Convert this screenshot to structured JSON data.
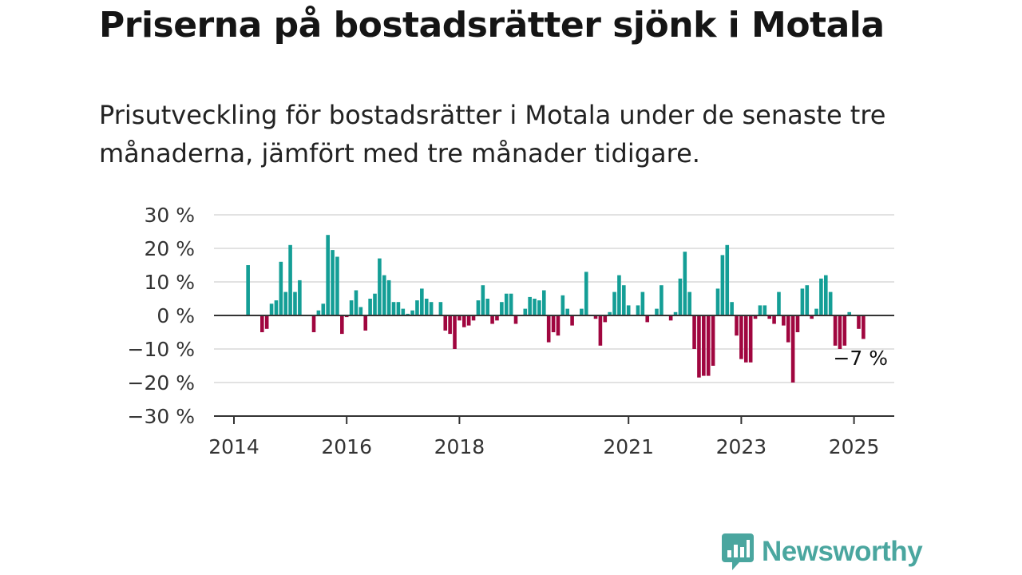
{
  "title": "Priserna på bostadsrätter sjönk i Motala",
  "subtitle": "Prisutveckling för bostadsrätter i Motala under de senaste tre månaderna, jämfört med tre månader tidigare.",
  "logo": {
    "text": "Newsworthy",
    "icon": "newsworthy-chart-bubble-icon",
    "color": "#4aa69f"
  },
  "colors": {
    "positive": "#149e96",
    "negative": "#a0063f",
    "grid": "#d9d9d9",
    "axis": "#333333"
  },
  "chart_data": {
    "type": "bar",
    "title": "",
    "xlabel": "",
    "ylabel": "",
    "ylim": [
      -30,
      30
    ],
    "yticks": [
      {
        "value": 30,
        "label": "30 %"
      },
      {
        "value": 20,
        "label": "20 %"
      },
      {
        "value": 10,
        "label": "10 %"
      },
      {
        "value": 0,
        "label": "0 %"
      },
      {
        "value": -10,
        "label": "−10 %"
      },
      {
        "value": -20,
        "label": "−20 %"
      },
      {
        "value": -30,
        "label": "−30 %"
      }
    ],
    "xticks": [
      {
        "date": "2014-01",
        "label": "2014"
      },
      {
        "date": "2016-01",
        "label": "2016"
      },
      {
        "date": "2018-01",
        "label": "2018"
      },
      {
        "date": "2021-01",
        "label": "2021"
      },
      {
        "date": "2023-01",
        "label": "2023"
      },
      {
        "date": "2025-01",
        "label": "2025"
      }
    ],
    "grid": true,
    "legend": "none",
    "end_label": "−7 %",
    "x": [
      "2014-04",
      "2014-05",
      "2014-06",
      "2014-07",
      "2014-08",
      "2014-09",
      "2014-10",
      "2014-11",
      "2014-12",
      "2015-01",
      "2015-02",
      "2015-03",
      "2015-04",
      "2015-05",
      "2015-06",
      "2015-07",
      "2015-08",
      "2015-09",
      "2015-10",
      "2015-11",
      "2015-12",
      "2016-01",
      "2016-02",
      "2016-03",
      "2016-04",
      "2016-05",
      "2016-06",
      "2016-07",
      "2016-08",
      "2016-09",
      "2016-10",
      "2016-11",
      "2016-12",
      "2017-01",
      "2017-02",
      "2017-03",
      "2017-04",
      "2017-05",
      "2017-06",
      "2017-07",
      "2017-08",
      "2017-09",
      "2017-10",
      "2017-11",
      "2017-12",
      "2018-01",
      "2018-02",
      "2018-03",
      "2018-04",
      "2018-05",
      "2018-06",
      "2018-07",
      "2018-08",
      "2018-09",
      "2018-10",
      "2018-11",
      "2018-12",
      "2019-01",
      "2019-02",
      "2019-03",
      "2019-04",
      "2019-05",
      "2019-06",
      "2019-07",
      "2019-08",
      "2019-09",
      "2019-10",
      "2019-11",
      "2019-12",
      "2020-01",
      "2020-02",
      "2020-03",
      "2020-04",
      "2020-05",
      "2020-06",
      "2020-07",
      "2020-08",
      "2020-09",
      "2020-10",
      "2020-11",
      "2020-12",
      "2021-01",
      "2021-02",
      "2021-03",
      "2021-04",
      "2021-05",
      "2021-06",
      "2021-07",
      "2021-08",
      "2021-09",
      "2021-10",
      "2021-11",
      "2021-12",
      "2022-01",
      "2022-02",
      "2022-03",
      "2022-04",
      "2022-05",
      "2022-06",
      "2022-07",
      "2022-08",
      "2022-09",
      "2022-10",
      "2022-11",
      "2022-12",
      "2023-01",
      "2023-02",
      "2023-03",
      "2023-04",
      "2023-05",
      "2023-06",
      "2023-07",
      "2023-08",
      "2023-09",
      "2023-10",
      "2023-11",
      "2023-12",
      "2024-01",
      "2024-02",
      "2024-03",
      "2024-04",
      "2024-05",
      "2024-06",
      "2024-07",
      "2024-08",
      "2024-09",
      "2024-10",
      "2024-11",
      "2024-12",
      "2025-01",
      "2025-02",
      "2025-03"
    ],
    "values": [
      15,
      0,
      0,
      -5,
      -4,
      3.5,
      4.5,
      16,
      7,
      21,
      7,
      10.5,
      0,
      0,
      -5,
      1.5,
      3.5,
      24,
      19.5,
      17.5,
      -5.5,
      -0.5,
      4.5,
      7.5,
      2.5,
      -4.5,
      5,
      6.5,
      17,
      12,
      10.5,
      4,
      4,
      2,
      0.5,
      1.5,
      4.5,
      8,
      5,
      4,
      0,
      4,
      -4.5,
      -5.5,
      -10,
      -1.5,
      -3.5,
      -3,
      -1.5,
      4.5,
      9,
      5,
      -2.5,
      -1.5,
      4,
      6.5,
      6.5,
      -2.5,
      0,
      2,
      5.5,
      5,
      4.5,
      7.5,
      -8,
      -5,
      -6,
      6,
      2,
      -3,
      0,
      2,
      13,
      0,
      -1,
      -9,
      -2,
      1,
      7,
      12,
      9,
      3,
      0,
      3,
      7,
      -2,
      0,
      2,
      9,
      0,
      -1.5,
      1,
      11,
      19,
      7,
      -10,
      -18.5,
      -18,
      -18,
      -15,
      8,
      18,
      21,
      4,
      -6,
      -13,
      -14,
      -14,
      -1,
      3,
      3,
      -1,
      -2.5,
      7,
      -3,
      -8,
      -20,
      -5,
      8,
      9,
      -1,
      2,
      11,
      12,
      7,
      -9,
      -10,
      -9,
      1,
      0,
      -4,
      -7
    ]
  }
}
